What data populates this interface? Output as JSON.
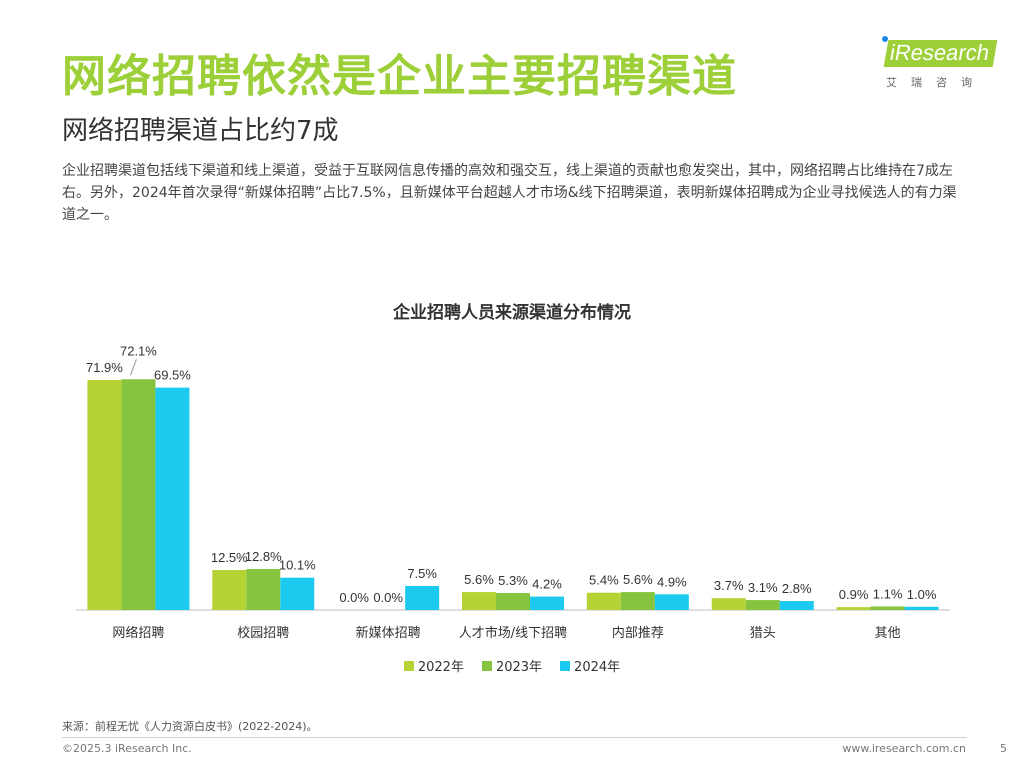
{
  "header": {
    "title": "网络招聘依然是企业主要招聘渠道",
    "subtitle": "网络招聘渠道占比约7成",
    "description": "企业招聘渠道包括线下渠道和线上渠道，受益于互联网信息传播的高效和强交互，线上渠道的贡献也愈发突出，其中，网络招聘占比维持在7成左右。另外，2024年首次录得“新媒体招聘”占比7.5%，且新媒体平台超越人才市场&线下招聘渠道，表明新媒体招聘成为企业寻找候选人的有力渠道之一。"
  },
  "logo": {
    "name": "iResearch",
    "subtitle": "艾瑞咨询",
    "color": "#9ccf38"
  },
  "chart_data": {
    "type": "bar",
    "title": "企业招聘人员来源渠道分布情况",
    "xlabel": "",
    "ylabel": "",
    "categories": [
      "网络招聘",
      "校园招聘",
      "新媒体招聘",
      "人才市场/线下招聘",
      "内部推荐",
      "猎头",
      "其他"
    ],
    "series": [
      {
        "name": "2022年",
        "color": "#b5d334",
        "values": [
          71.9,
          12.5,
          0.0,
          5.6,
          5.4,
          3.7,
          0.9
        ],
        "labels": [
          "71.9%",
          "12.5%",
          "0.0%",
          "5.6%",
          "5.4%",
          "3.7%",
          "0.9%"
        ]
      },
      {
        "name": "2023年",
        "color": "#86c440",
        "values": [
          72.1,
          12.8,
          0.0,
          5.3,
          5.6,
          3.1,
          1.1
        ],
        "labels": [
          "72.1%",
          "12.8%",
          "0.0%",
          "5.3%",
          "5.6%",
          "3.1%",
          "1.1%"
        ]
      },
      {
        "name": "2024年",
        "color": "#1ccaf0",
        "values": [
          69.5,
          10.1,
          7.5,
          4.2,
          4.9,
          2.8,
          1.0
        ],
        "labels": [
          "69.5%",
          "10.1%",
          "7.5%",
          "4.2%",
          "4.9%",
          "2.8%",
          "1.0%"
        ]
      }
    ],
    "ylim": [
      0,
      75
    ],
    "grid": false,
    "legend": "bottom"
  },
  "footer": {
    "source": "来源：前程无忧《人力资源白皮书》(2022-2024)。",
    "copyright": "©2025.3 iResearch Inc.",
    "website": "www.iresearch.com.cn",
    "page": "5"
  }
}
